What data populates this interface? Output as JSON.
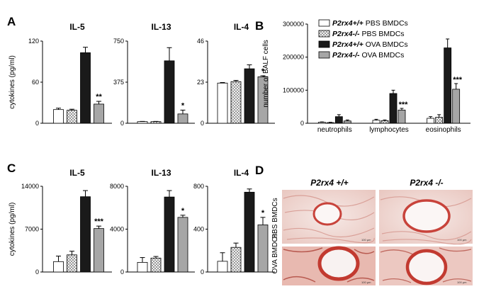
{
  "panels": {
    "A": "A",
    "B": "B",
    "C": "C",
    "D": "D"
  },
  "legend": [
    {
      "gene": "P2rx4",
      "genotype": "+/+",
      "treatment": "PBS BMDCs",
      "fill": "#ffffff",
      "pattern": false
    },
    {
      "gene": "P2rx4",
      "genotype": "-/-",
      "treatment": "PBS BMDCs",
      "fill": "#d9d9d9",
      "pattern": true
    },
    {
      "gene": "P2rx4",
      "genotype": "+/+",
      "treatment": "OVA BMDCs",
      "fill": "#1a1a1a",
      "pattern": false
    },
    {
      "gene": "P2rx4",
      "genotype": "-/-",
      "treatment": "OVA BMDCs",
      "fill": "#a6a6a6",
      "pattern": false
    }
  ],
  "histology": {
    "col_labels": [
      "P2rx4 +/+",
      "P2rx4 -/-"
    ],
    "row_labels": [
      "PBS BMDCs",
      "OVA BMDCs"
    ]
  },
  "chart_data": [
    {
      "type": "bar",
      "panel": "A",
      "title": "IL-5",
      "ylabel": "cytokines (pg/ml)",
      "yticks": [
        "0",
        "60",
        "120"
      ],
      "ylim": [
        0,
        120
      ],
      "values": [
        20,
        19,
        103,
        28
      ],
      "errors": [
        2,
        1.5,
        8,
        4
      ],
      "significance": "**"
    },
    {
      "type": "bar",
      "panel": "A",
      "title": "IL-13",
      "ylabel": "",
      "yticks": [
        "0",
        "375",
        "750"
      ],
      "ylim": [
        0,
        750
      ],
      "values": [
        15,
        15,
        570,
        85
      ],
      "errors": [
        2,
        2,
        120,
        35
      ],
      "significance": "*"
    },
    {
      "type": "bar",
      "panel": "A",
      "title": "IL-4",
      "ylabel": "",
      "yticks": [
        "0",
        "23",
        "46"
      ],
      "ylim": [
        0,
        46
      ],
      "values": [
        22.5,
        23.3,
        30.5,
        26
      ],
      "errors": [
        0.3,
        0.7,
        2.2,
        0.6
      ],
      "significance": "*"
    },
    {
      "type": "bar",
      "panel": "B",
      "title": "",
      "ylabel": "number of BALF cells",
      "yticks": [
        "0",
        "100000",
        "200000",
        "300000"
      ],
      "ylim": [
        0,
        300000
      ],
      "categories": [
        "neutrophils",
        "lymphocytes",
        "eosinophils"
      ],
      "series": [
        {
          "values": [
            3000,
            9000,
            15000
          ],
          "errors": [
            1000,
            3000,
            5000
          ]
        },
        {
          "values": [
            2000,
            8000,
            18000
          ],
          "errors": [
            1000,
            2000,
            8000
          ]
        },
        {
          "values": [
            20000,
            90000,
            228000
          ],
          "errors": [
            6000,
            10000,
            27000
          ]
        },
        {
          "values": [
            7000,
            40000,
            103000
          ],
          "errors": [
            3000,
            5000,
            17000
          ]
        }
      ],
      "significance": [
        "",
        "***",
        "***"
      ]
    },
    {
      "type": "bar",
      "panel": "C",
      "title": "IL-5",
      "ylabel": "cytokines (pg/ml)",
      "yticks": [
        "0",
        "7000",
        "14000"
      ],
      "ylim": [
        0,
        14000
      ],
      "values": [
        1700,
        2800,
        12300,
        7100
      ],
      "errors": [
        900,
        600,
        1000,
        400
      ],
      "significance": "***"
    },
    {
      "type": "bar",
      "panel": "C",
      "title": "IL-13",
      "ylabel": "",
      "yticks": [
        "0",
        "4000",
        "8000"
      ],
      "ylim": [
        0,
        8000
      ],
      "values": [
        900,
        1300,
        7000,
        5100
      ],
      "errors": [
        450,
        150,
        600,
        200
      ],
      "significance": "*"
    },
    {
      "type": "bar",
      "panel": "C",
      "title": "IL-4",
      "ylabel": "",
      "yticks": [
        "0",
        "400",
        "800"
      ],
      "ylim": [
        0,
        800
      ],
      "values": [
        100,
        230,
        745,
        440
      ],
      "errors": [
        80,
        40,
        30,
        70
      ],
      "significance": "*"
    }
  ]
}
